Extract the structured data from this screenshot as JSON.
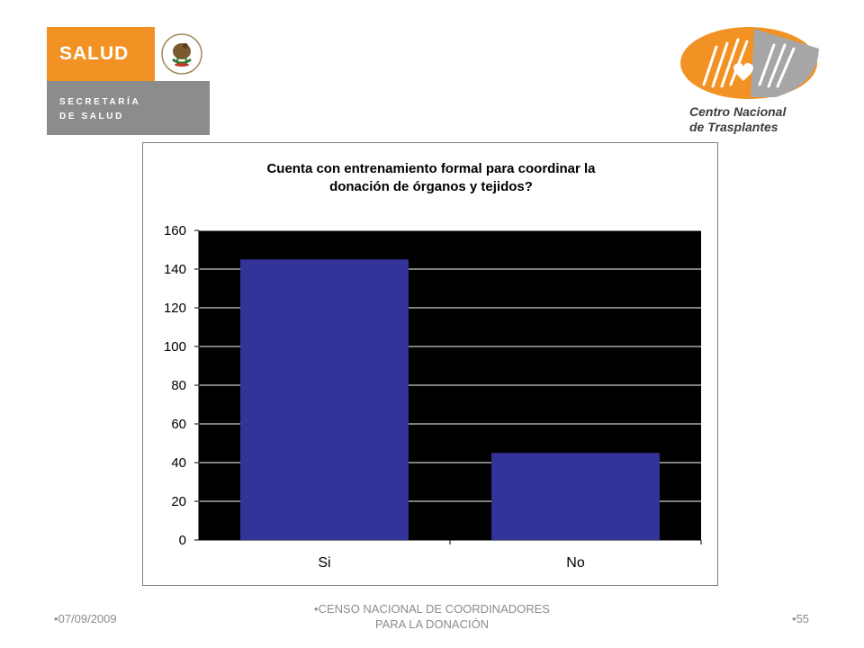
{
  "logos": {
    "salud": {
      "word": "SALUD",
      "line1": "SECRETARÍA",
      "line2": "DE SALUD",
      "orange": "#f39224",
      "gray": "#8c8c8c",
      "seal_icon": "mexican-coat-of-arms-icon"
    },
    "cnt": {
      "line1": "Centro Nacional",
      "line2": "de Trasplantes",
      "orange": "#f39224",
      "gray": "#a6a6a6",
      "emblem_icon": "hands-heart-icon"
    }
  },
  "chart_data": {
    "type": "bar",
    "title_line1": "Cuenta con entrenamiento formal para coordinar la",
    "title_line2": "donación de órganos y tejidos?",
    "categories": [
      "Si",
      "No"
    ],
    "values": [
      145,
      45
    ],
    "ylim": [
      0,
      160
    ],
    "yticks": [
      0,
      20,
      40,
      60,
      80,
      100,
      120,
      140,
      160
    ],
    "grid": true,
    "legend": "none",
    "bar_color": "#333399",
    "plot_background": "#000000",
    "grid_color": "#ffffff"
  },
  "footer": {
    "date": "07/09/2009",
    "center_line1": "CENSO NACIONAL DE COORDINADORES",
    "center_line2": "PARA LA DONACIÓN",
    "page": "55"
  }
}
